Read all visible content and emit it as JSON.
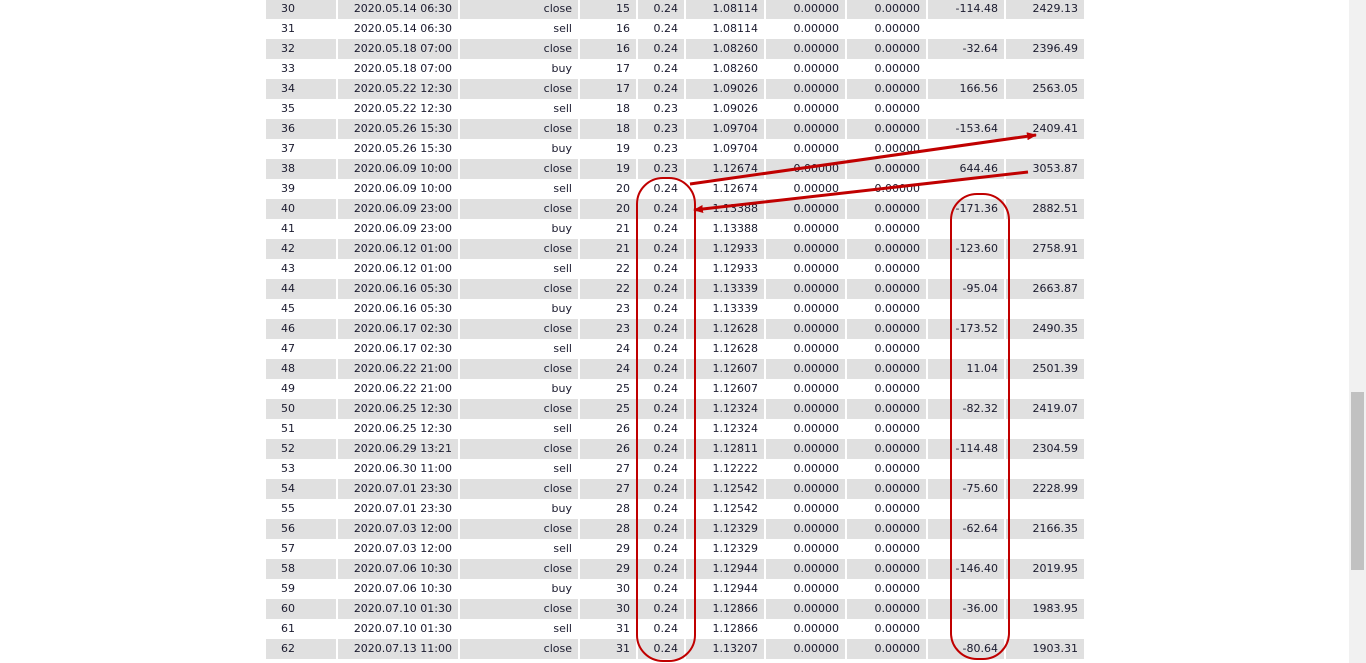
{
  "annotation_color": "#c00000",
  "rows": [
    [
      "30",
      "2020.05.14 06:30",
      "close",
      "15",
      "0.24",
      "1.08114",
      "0.00000",
      "0.00000",
      "-114.48",
      "2429.13"
    ],
    [
      "31",
      "2020.05.14 06:30",
      "sell",
      "16",
      "0.24",
      "1.08114",
      "0.00000",
      "0.00000",
      "",
      ""
    ],
    [
      "32",
      "2020.05.18 07:00",
      "close",
      "16",
      "0.24",
      "1.08260",
      "0.00000",
      "0.00000",
      "-32.64",
      "2396.49"
    ],
    [
      "33",
      "2020.05.18 07:00",
      "buy",
      "17",
      "0.24",
      "1.08260",
      "0.00000",
      "0.00000",
      "",
      ""
    ],
    [
      "34",
      "2020.05.22 12:30",
      "close",
      "17",
      "0.24",
      "1.09026",
      "0.00000",
      "0.00000",
      "166.56",
      "2563.05"
    ],
    [
      "35",
      "2020.05.22 12:30",
      "sell",
      "18",
      "0.23",
      "1.09026",
      "0.00000",
      "0.00000",
      "",
      ""
    ],
    [
      "36",
      "2020.05.26 15:30",
      "close",
      "18",
      "0.23",
      "1.09704",
      "0.00000",
      "0.00000",
      "-153.64",
      "2409.41"
    ],
    [
      "37",
      "2020.05.26 15:30",
      "buy",
      "19",
      "0.23",
      "1.09704",
      "0.00000",
      "0.00000",
      "",
      ""
    ],
    [
      "38",
      "2020.06.09 10:00",
      "close",
      "19",
      "0.23",
      "1.12674",
      "0.00000",
      "0.00000",
      "644.46",
      "3053.87"
    ],
    [
      "39",
      "2020.06.09 10:00",
      "sell",
      "20",
      "0.24",
      "1.12674",
      "0.00000",
      "0.00000",
      "",
      ""
    ],
    [
      "40",
      "2020.06.09 23:00",
      "close",
      "20",
      "0.24",
      "1.13388",
      "0.00000",
      "0.00000",
      "-171.36",
      "2882.51"
    ],
    [
      "41",
      "2020.06.09 23:00",
      "buy",
      "21",
      "0.24",
      "1.13388",
      "0.00000",
      "0.00000",
      "",
      ""
    ],
    [
      "42",
      "2020.06.12 01:00",
      "close",
      "21",
      "0.24",
      "1.12933",
      "0.00000",
      "0.00000",
      "-123.60",
      "2758.91"
    ],
    [
      "43",
      "2020.06.12 01:00",
      "sell",
      "22",
      "0.24",
      "1.12933",
      "0.00000",
      "0.00000",
      "",
      ""
    ],
    [
      "44",
      "2020.06.16 05:30",
      "close",
      "22",
      "0.24",
      "1.13339",
      "0.00000",
      "0.00000",
      "-95.04",
      "2663.87"
    ],
    [
      "45",
      "2020.06.16 05:30",
      "buy",
      "23",
      "0.24",
      "1.13339",
      "0.00000",
      "0.00000",
      "",
      ""
    ],
    [
      "46",
      "2020.06.17 02:30",
      "close",
      "23",
      "0.24",
      "1.12628",
      "0.00000",
      "0.00000",
      "-173.52",
      "2490.35"
    ],
    [
      "47",
      "2020.06.17 02:30",
      "sell",
      "24",
      "0.24",
      "1.12628",
      "0.00000",
      "0.00000",
      "",
      ""
    ],
    [
      "48",
      "2020.06.22 21:00",
      "close",
      "24",
      "0.24",
      "1.12607",
      "0.00000",
      "0.00000",
      "11.04",
      "2501.39"
    ],
    [
      "49",
      "2020.06.22 21:00",
      "buy",
      "25",
      "0.24",
      "1.12607",
      "0.00000",
      "0.00000",
      "",
      ""
    ],
    [
      "50",
      "2020.06.25 12:30",
      "close",
      "25",
      "0.24",
      "1.12324",
      "0.00000",
      "0.00000",
      "-82.32",
      "2419.07"
    ],
    [
      "51",
      "2020.06.25 12:30",
      "sell",
      "26",
      "0.24",
      "1.12324",
      "0.00000",
      "0.00000",
      "",
      ""
    ],
    [
      "52",
      "2020.06.29 13:21",
      "close",
      "26",
      "0.24",
      "1.12811",
      "0.00000",
      "0.00000",
      "-114.48",
      "2304.59"
    ],
    [
      "53",
      "2020.06.30 11:00",
      "sell",
      "27",
      "0.24",
      "1.12222",
      "0.00000",
      "0.00000",
      "",
      ""
    ],
    [
      "54",
      "2020.07.01 23:30",
      "close",
      "27",
      "0.24",
      "1.12542",
      "0.00000",
      "0.00000",
      "-75.60",
      "2228.99"
    ],
    [
      "55",
      "2020.07.01 23:30",
      "buy",
      "28",
      "0.24",
      "1.12542",
      "0.00000",
      "0.00000",
      "",
      ""
    ],
    [
      "56",
      "2020.07.03 12:00",
      "close",
      "28",
      "0.24",
      "1.12329",
      "0.00000",
      "0.00000",
      "-62.64",
      "2166.35"
    ],
    [
      "57",
      "2020.07.03 12:00",
      "sell",
      "29",
      "0.24",
      "1.12329",
      "0.00000",
      "0.00000",
      "",
      ""
    ],
    [
      "58",
      "2020.07.06 10:30",
      "close",
      "29",
      "0.24",
      "1.12944",
      "0.00000",
      "0.00000",
      "-146.40",
      "2019.95"
    ],
    [
      "59",
      "2020.07.06 10:30",
      "buy",
      "30",
      "0.24",
      "1.12944",
      "0.00000",
      "0.00000",
      "",
      ""
    ],
    [
      "60",
      "2020.07.10 01:30",
      "close",
      "30",
      "0.24",
      "1.12866",
      "0.00000",
      "0.00000",
      "-36.00",
      "1983.95"
    ],
    [
      "61",
      "2020.07.10 01:30",
      "sell",
      "31",
      "0.24",
      "1.12866",
      "0.00000",
      "0.00000",
      "",
      ""
    ],
    [
      "62",
      "2020.07.13 11:00",
      "close",
      "31",
      "0.24",
      "1.13207",
      "0.00000",
      "0.00000",
      "-80.64",
      "1903.31"
    ]
  ]
}
